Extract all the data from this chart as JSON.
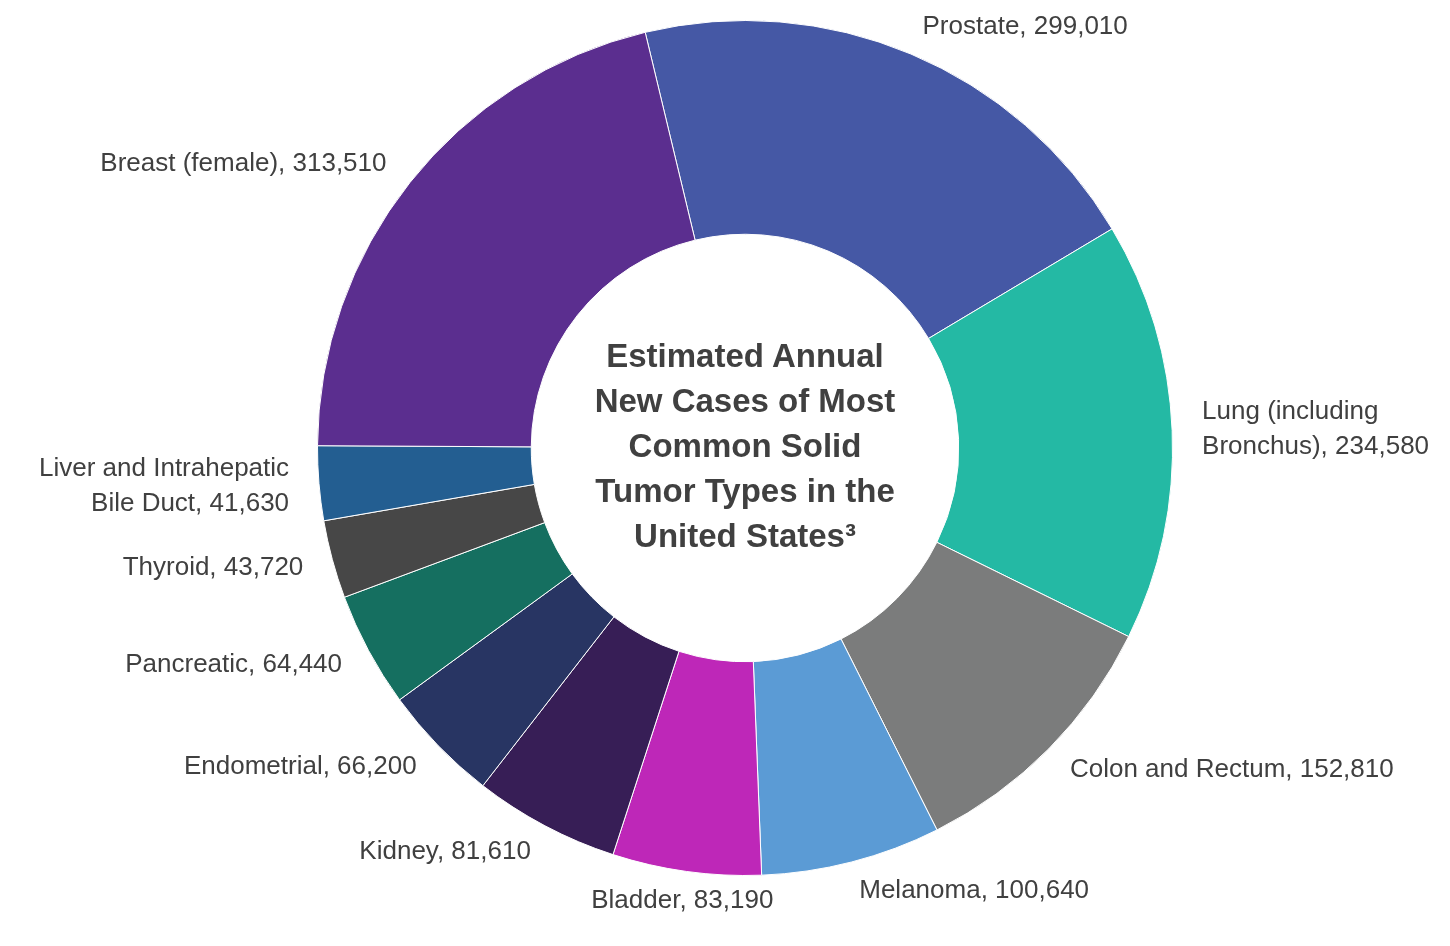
{
  "chart_data": {
    "type": "donut",
    "title": "Estimated Annual New Cases of Most Common Solid Tumor Types in the United States³",
    "categories": [
      "Prostate",
      "Lung (including Bronchus)",
      "Colon and Rectum",
      "Melanoma",
      "Bladder",
      "Kidney",
      "Endometrial",
      "Pancreatic",
      "Thyroid",
      "Liver and Intrahepatic Bile Duct",
      "Breast (female)"
    ],
    "values": [
      299010,
      234580,
      152810,
      100640,
      83190,
      81610,
      66200,
      64440,
      43720,
      41630,
      313510
    ],
    "value_labels": [
      "299,010",
      "234,580",
      "152,810",
      "100,640",
      "83,190",
      "81,610",
      "66,200",
      "64,440",
      "43,720",
      "41,630",
      "313,510"
    ],
    "colors": [
      "#4558a5",
      "#24b9a4",
      "#7b7c7c",
      "#5b9bd5",
      "#be27b8",
      "#371e56",
      "#283563",
      "#156f60",
      "#474747",
      "#235e91",
      "#5b2e8f"
    ]
  }
}
